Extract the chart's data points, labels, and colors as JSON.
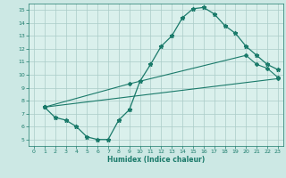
{
  "lines": [
    {
      "x": [
        1,
        2,
        3,
        4,
        5,
        6,
        7,
        8,
        9,
        10,
        11,
        12,
        13,
        14,
        15,
        16,
        17,
        18,
        19,
        20,
        21,
        22,
        23
      ],
      "y": [
        7.5,
        6.7,
        6.5,
        6.0,
        5.2,
        5.0,
        5.0,
        6.5,
        7.3,
        9.5,
        10.8,
        12.2,
        13.0,
        14.4,
        15.1,
        15.2,
        14.7,
        13.8,
        13.2,
        12.2,
        11.5,
        10.8,
        10.4
      ],
      "color": "#1a7a6a",
      "marker": "*",
      "markersize": 3.5,
      "linewidth": 0.9
    },
    {
      "x": [
        1,
        9,
        20,
        21,
        22,
        23
      ],
      "y": [
        7.5,
        9.3,
        11.5,
        10.8,
        10.5,
        9.8
      ],
      "color": "#1a7a6a",
      "marker": "D",
      "markersize": 2.0,
      "linewidth": 0.8
    },
    {
      "x": [
        1,
        23
      ],
      "y": [
        7.5,
        9.7
      ],
      "color": "#1a7a6a",
      "marker": "D",
      "markersize": 2.0,
      "linewidth": 0.8
    }
  ],
  "xlim": [
    -0.5,
    23.5
  ],
  "ylim": [
    4.5,
    15.5
  ],
  "xticks": [
    0,
    1,
    2,
    3,
    4,
    5,
    6,
    7,
    8,
    9,
    10,
    11,
    12,
    13,
    14,
    15,
    16,
    17,
    18,
    19,
    20,
    21,
    22,
    23
  ],
  "yticks": [
    5,
    6,
    7,
    8,
    9,
    10,
    11,
    12,
    13,
    14,
    15
  ],
  "xlabel": "Humidex (Indice chaleur)",
  "background_color": "#cce8e4",
  "plot_bg_color": "#daf0ec",
  "grid_color": "#aaccc8",
  "tick_color": "#1a7a6a",
  "label_color": "#1a7a6a",
  "spine_color": "#1a7a6a"
}
